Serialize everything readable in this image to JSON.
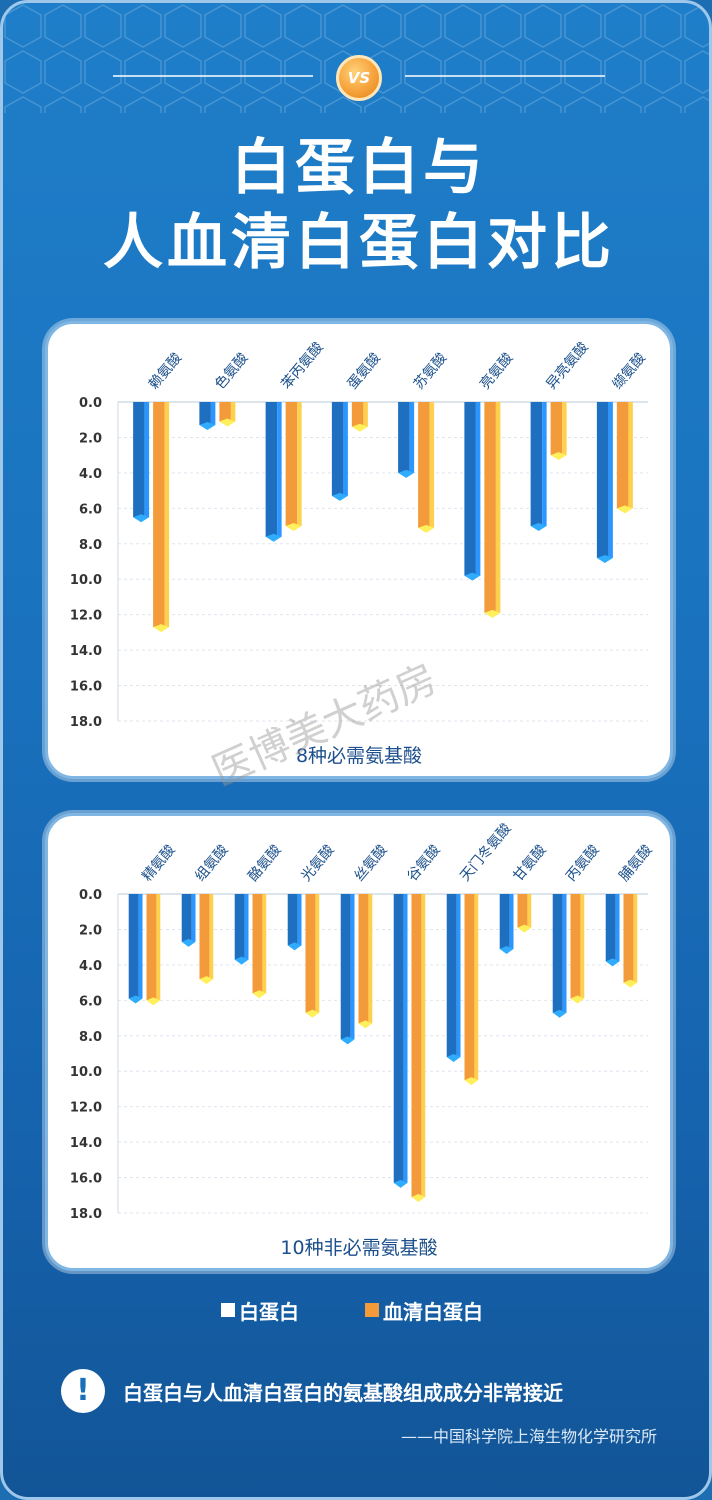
{
  "header": {
    "vs_label": "VS",
    "title_line1": "白蛋白与",
    "title_line2": "人血清白蛋白对比"
  },
  "colors": {
    "albumin": "#1f6fc0",
    "serum_albumin": "#f39a3a"
  },
  "chart_data": [
    {
      "type": "bar",
      "title": "8种必需氨基酸",
      "categories": [
        "赖氨酸",
        "色氨酸",
        "苯丙氨酸",
        "蛋氨酸",
        "苏氨酸",
        "亮氨酸",
        "异亮氨酸",
        "缬氨酸"
      ],
      "series": [
        {
          "name": "白蛋白",
          "values": [
            6.5,
            1.3,
            7.6,
            5.3,
            4.0,
            9.8,
            7.0,
            8.8
          ]
        },
        {
          "name": "血清白蛋白",
          "values": [
            12.7,
            1.1,
            7.0,
            1.4,
            7.1,
            11.9,
            3.0,
            6.0
          ]
        }
      ],
      "yticks": [
        "0.0",
        "2.0",
        "4.0",
        "6.0",
        "8.0",
        "10.0",
        "12.0",
        "14.0",
        "16.0",
        "18.0"
      ],
      "ylim": [
        0,
        18
      ],
      "y_inverted": true,
      "grid": true
    },
    {
      "type": "bar",
      "title": "10种非必需氨基酸",
      "categories": [
        "精氨酸",
        "组氨酸",
        "酪氨酸",
        "光氨酸",
        "丝氨酸",
        "谷氨酸",
        "天门冬氨酸",
        "甘氨酸",
        "丙氨酸",
        "脯氨酸"
      ],
      "series": [
        {
          "name": "白蛋白",
          "values": [
            5.9,
            2.7,
            3.7,
            2.9,
            8.2,
            16.3,
            9.2,
            3.1,
            6.7,
            3.8
          ]
        },
        {
          "name": "血清白蛋白",
          "values": [
            6.0,
            4.8,
            5.6,
            6.7,
            7.3,
            17.1,
            10.5,
            1.9,
            5.9,
            5.0
          ]
        }
      ],
      "yticks": [
        "0.0",
        "2.0",
        "4.0",
        "6.0",
        "8.0",
        "10.0",
        "12.0",
        "14.0",
        "16.0",
        "18.0"
      ],
      "ylim": [
        0,
        18
      ],
      "y_inverted": true,
      "grid": true
    }
  ],
  "legend": {
    "item1": "白蛋白",
    "item2": "血清白蛋白"
  },
  "note": {
    "icon": "exclamation-icon",
    "icon_glyph": "!",
    "text": "白蛋白与人血清白蛋白的氨基酸组成成分非常接近",
    "source": "——中国科学院上海生物化学研究所"
  },
  "watermark": "医博美大药房"
}
